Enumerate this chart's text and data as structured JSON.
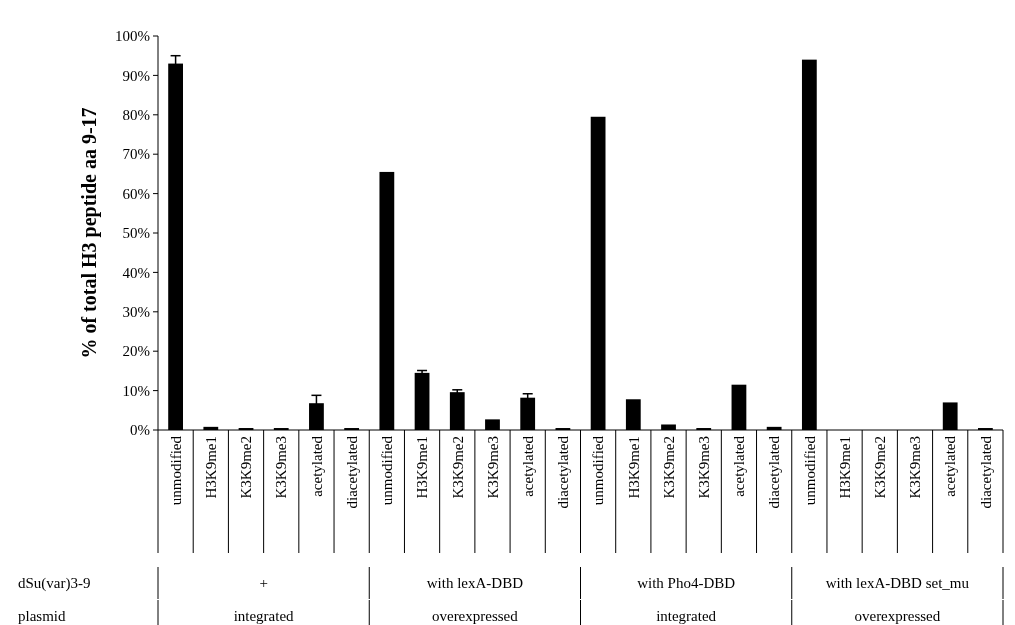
{
  "chart_data": {
    "type": "bar",
    "ylabel": "% of total H3 peptide aa 9-17",
    "categories": [
      "unmodified",
      "H3K9me1",
      "K3K9me2",
      "K3K9me3",
      "acetylated",
      "diacetylated",
      "unmodified",
      "H3K9me1",
      "K3K9me2",
      "K3K9me3",
      "acetylated",
      "diacetylated",
      "unmodified",
      "H3K9me1",
      "K3K9me2",
      "K3K9me3",
      "acetylated",
      "diacetylated",
      "unmodified",
      "H3K9me1",
      "K3K9me2",
      "K3K9me3",
      "acetylated",
      "diacetylated"
    ],
    "values": [
      93,
      0.8,
      0.5,
      0.5,
      6.8,
      0.5,
      65.5,
      14.5,
      9.6,
      2.7,
      8.2,
      0.5,
      79.5,
      7.8,
      1.4,
      0.5,
      11.5,
      0.8,
      94,
      0,
      0,
      0,
      7,
      0.5
    ],
    "errors": [
      2,
      null,
      null,
      null,
      2,
      null,
      null,
      0.6,
      0.6,
      null,
      1,
      null,
      null,
      null,
      null,
      null,
      null,
      null,
      null,
      null,
      null,
      null,
      null,
      null
    ],
    "color": "#000000",
    "ylim": [
      0,
      100
    ],
    "yticks": [
      {
        "value": 0,
        "label": "0%"
      },
      {
        "value": 10,
        "label": "10%"
      },
      {
        "value": 20,
        "label": "20%"
      },
      {
        "value": 30,
        "label": "30%"
      },
      {
        "value": 40,
        "label": "40%"
      },
      {
        "value": 50,
        "label": "50%"
      },
      {
        "value": 60,
        "label": "60%"
      },
      {
        "value": 70,
        "label": "70%"
      },
      {
        "value": 80,
        "label": "80%"
      },
      {
        "value": 90,
        "label": "90%"
      },
      {
        "value": 100,
        "label": "100%"
      }
    ],
    "annotations": [
      "dSu(var)3-9",
      "+",
      "with lexA-DBD",
      "with Pho4-DBD",
      "with lexA-DBD set_mu",
      "plasmid",
      "integrated",
      "overexpressed",
      "integrated",
      "overexpressed"
    ]
  }
}
